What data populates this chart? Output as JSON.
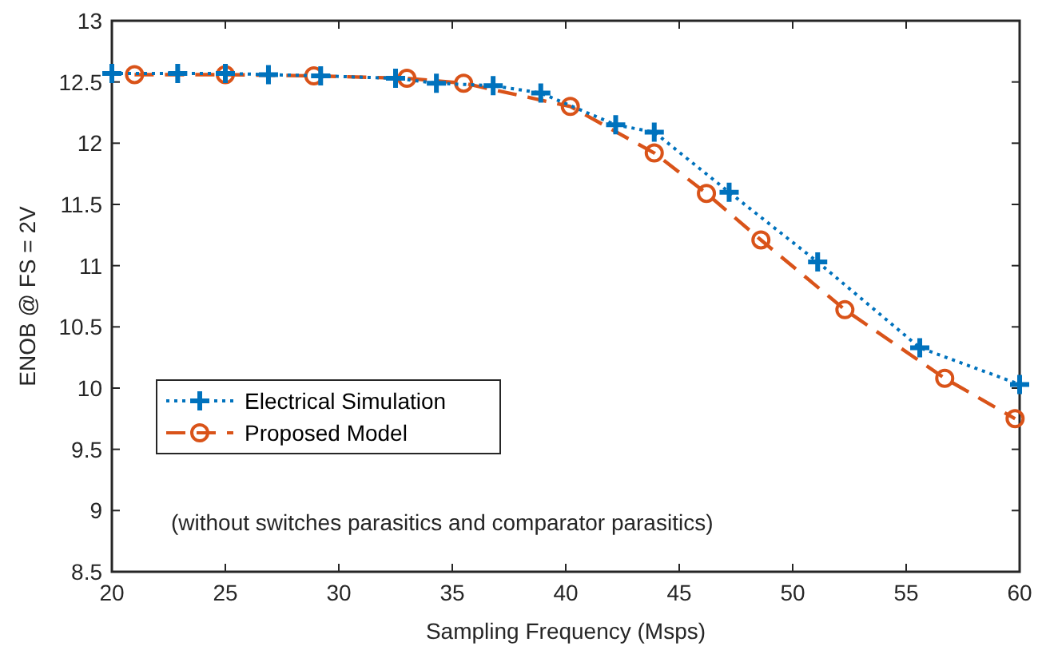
{
  "chart_data": {
    "type": "line",
    "xlabel": "Sampling Frequency (Msps)",
    "ylabel": "ENOB @ FS = 2V",
    "xlim": [
      20,
      60
    ],
    "xticks": [
      20,
      25,
      30,
      35,
      40,
      45,
      50,
      55,
      60
    ],
    "ylim": [
      8.5,
      13
    ],
    "yticks": [
      8.5,
      9,
      9.5,
      10,
      10.5,
      11,
      11.5,
      12,
      12.5,
      13
    ],
    "grid": false,
    "legend": "left",
    "annotations": [
      "(without switches parasitics and comparator parasitics)"
    ],
    "series": [
      {
        "name": "Electrical Simulation",
        "color": "#0072bd",
        "marker": "cross",
        "line_style": "dotted",
        "x": [
          20,
          22.9,
          25,
          26.9,
          29.2,
          32.5,
          34.3,
          36.8,
          38.9,
          42.2,
          43.9,
          47.2,
          51.1,
          55.6,
          60
        ],
        "values": [
          12.57,
          12.57,
          12.57,
          12.56,
          12.55,
          12.53,
          12.49,
          12.47,
          12.41,
          12.15,
          12.09,
          11.6,
          11.03,
          10.33,
          10.03
        ]
      },
      {
        "name": "Proposed Model",
        "color": "#d95319",
        "marker": "circle",
        "line_style": "dashed",
        "x": [
          21,
          25,
          28.9,
          33,
          35.5,
          40.2,
          43.9,
          46.2,
          48.6,
          52.3,
          56.7,
          59.8
        ],
        "values": [
          12.56,
          12.56,
          12.55,
          12.53,
          12.49,
          12.3,
          11.92,
          11.59,
          11.21,
          10.64,
          10.08,
          9.75
        ]
      }
    ]
  }
}
